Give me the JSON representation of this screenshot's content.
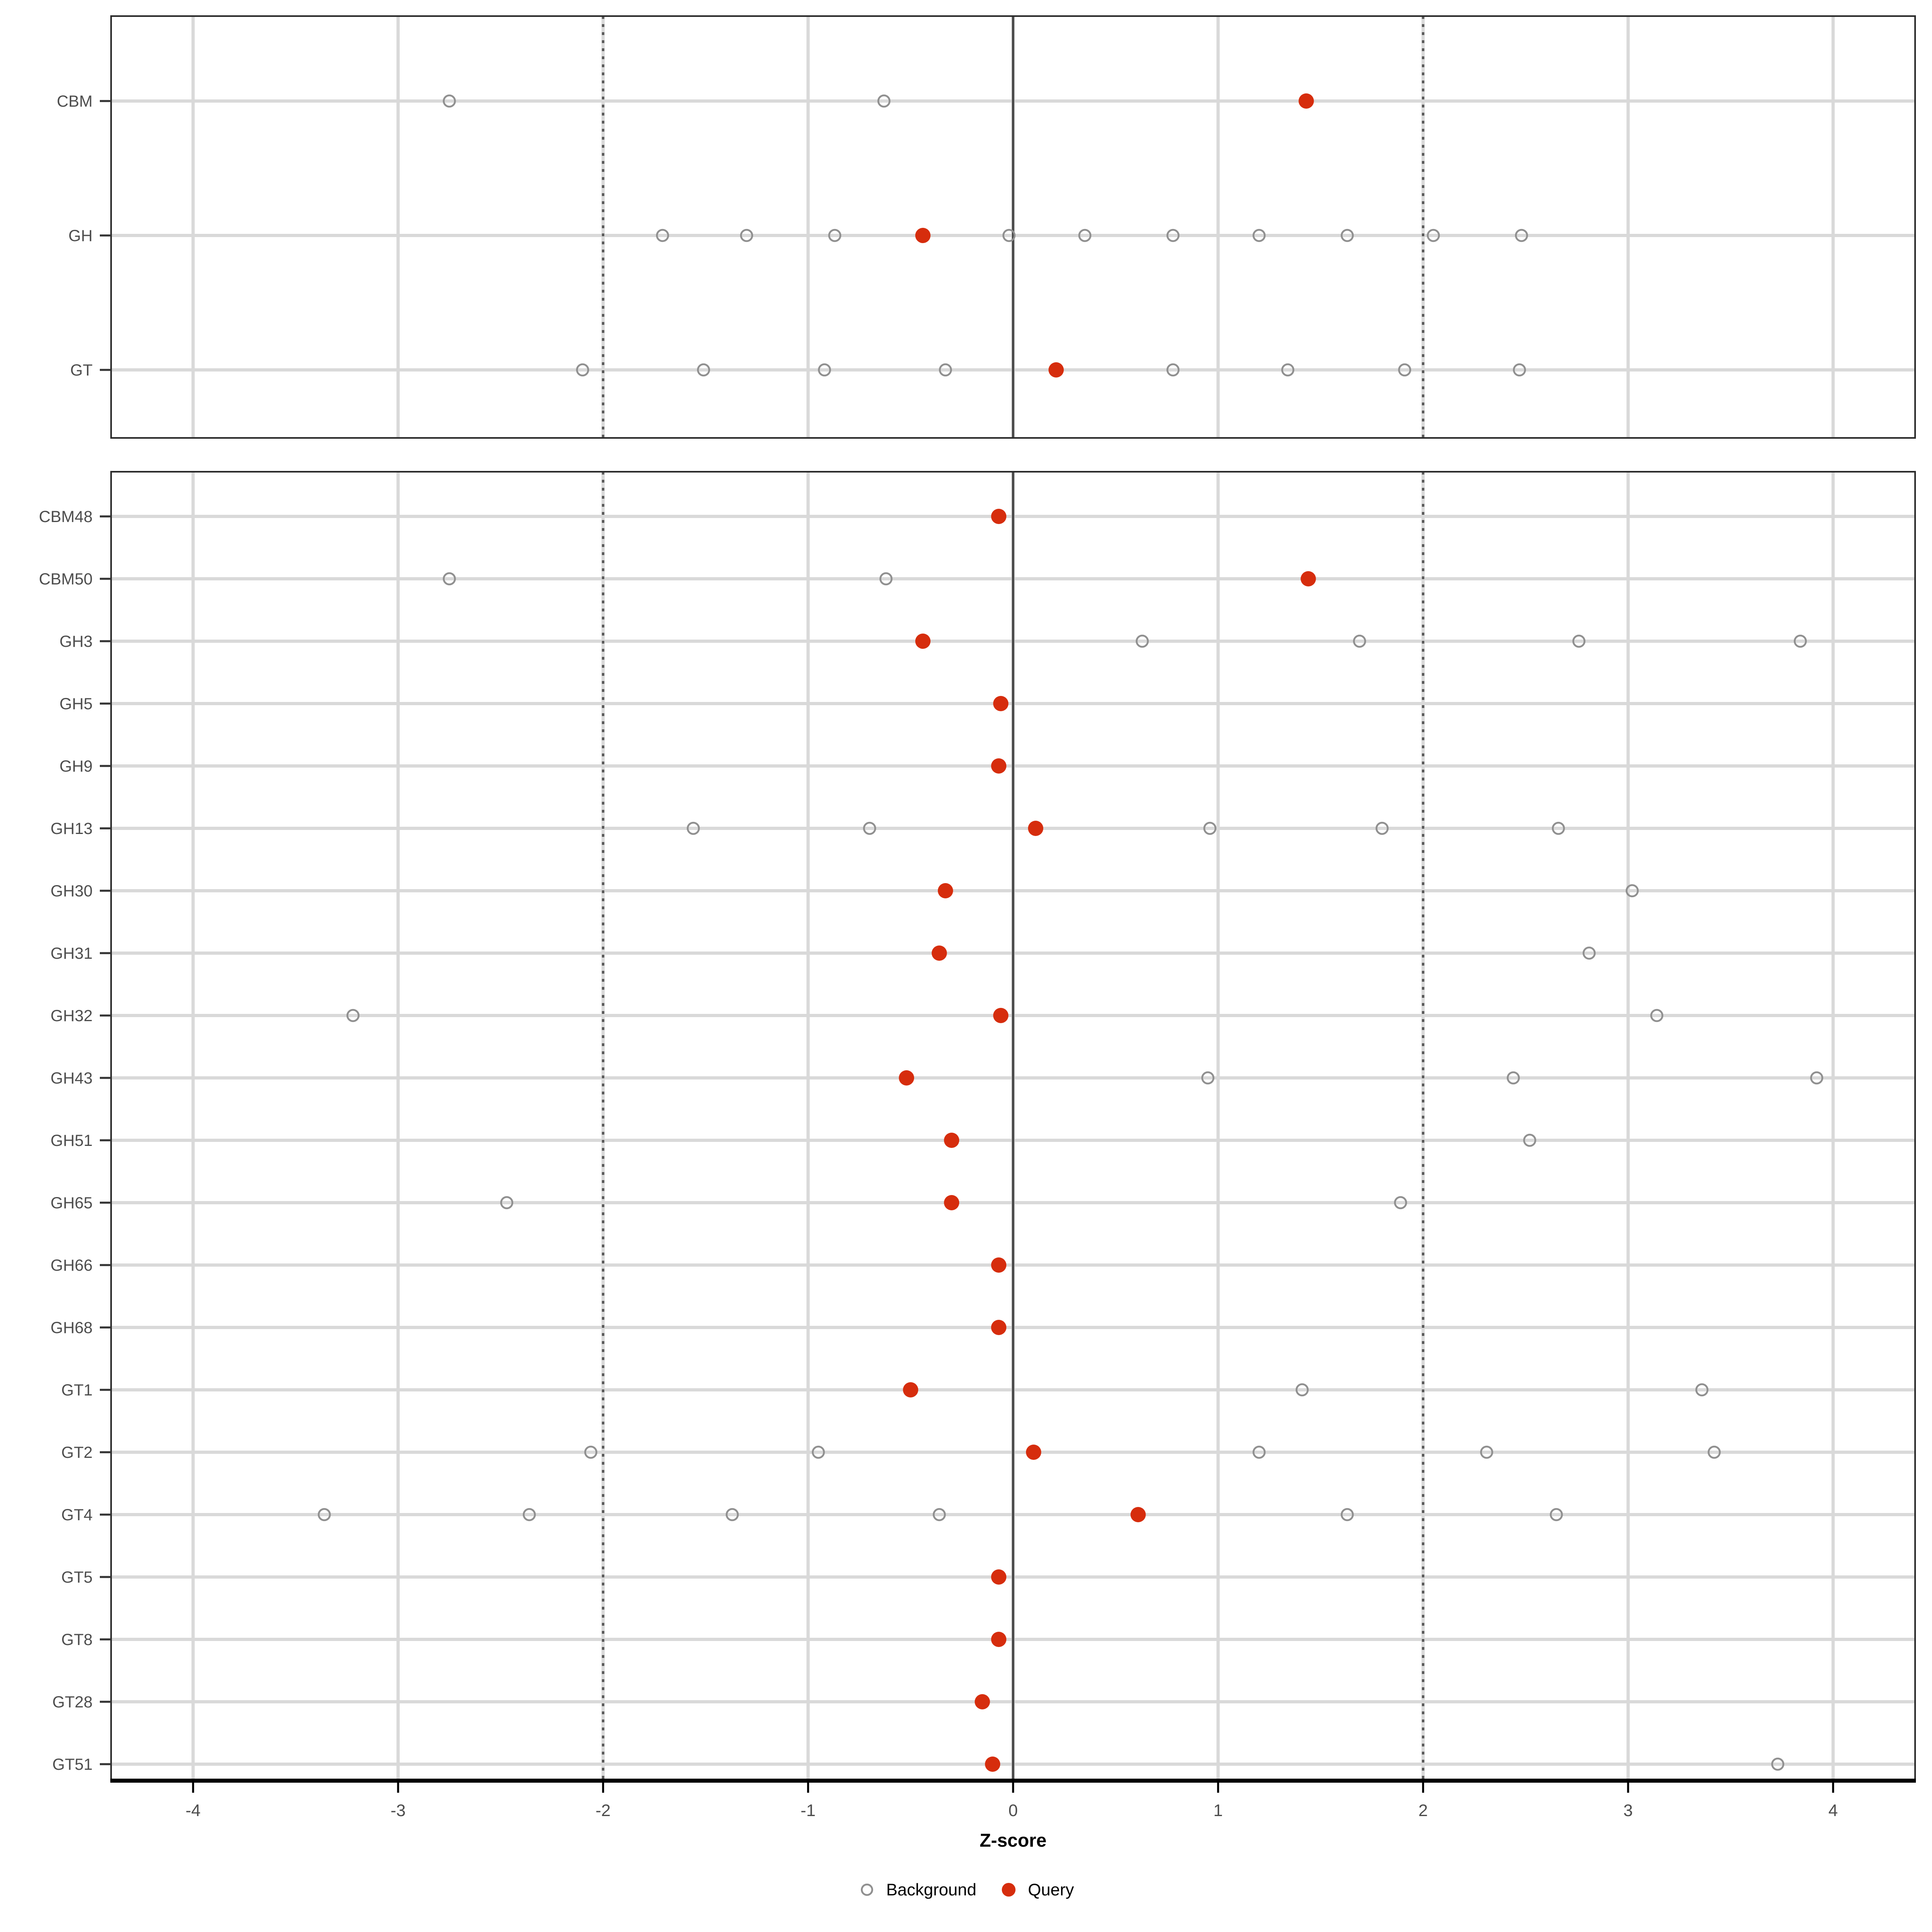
{
  "chart_data": {
    "type": "scatter",
    "title": "",
    "xlabel": "Z-score",
    "ylabel": "",
    "xlim": [
      -4.4,
      4.4
    ],
    "x_ticks": [
      -4,
      -3,
      -2,
      -1,
      0,
      1,
      2,
      3,
      4
    ],
    "grid": "on",
    "legend_position": "bottom",
    "reference_lines": {
      "solid": [
        0
      ],
      "dotted": [
        -2,
        2
      ]
    },
    "series_names": [
      "Background",
      "Query"
    ],
    "panels": [
      {
        "name": "summary-panel",
        "rows": [
          {
            "label": "CBM",
            "background": [
              -2.75,
              -0.63
            ],
            "query": [
              1.43
            ]
          },
          {
            "label": "GH",
            "background": [
              -1.71,
              -1.3,
              -0.87,
              -0.02,
              0.35,
              0.78,
              1.2,
              1.63,
              2.05,
              2.48
            ],
            "query": [
              -0.44
            ]
          },
          {
            "label": "GT",
            "background": [
              -2.1,
              -1.51,
              -0.92,
              -0.33,
              0.78,
              1.34,
              1.91,
              2.47
            ],
            "query": [
              0.21
            ]
          }
        ]
      },
      {
        "name": "family-panel",
        "rows": [
          {
            "label": "CBM48",
            "background": [],
            "query": [
              -0.07
            ]
          },
          {
            "label": "CBM50",
            "background": [
              -2.75,
              -0.62
            ],
            "query": [
              1.44
            ]
          },
          {
            "label": "GH3",
            "background": [
              0.63,
              1.69,
              2.76,
              3.84
            ],
            "query": [
              -0.44
            ]
          },
          {
            "label": "GH5",
            "background": [],
            "query": [
              -0.06
            ]
          },
          {
            "label": "GH9",
            "background": [],
            "query": [
              -0.07
            ]
          },
          {
            "label": "GH13",
            "background": [
              -1.56,
              -0.7,
              0.96,
              1.8,
              2.66
            ],
            "query": [
              0.11
            ]
          },
          {
            "label": "GH30",
            "background": [
              3.02
            ],
            "query": [
              -0.33
            ]
          },
          {
            "label": "GH31",
            "background": [
              2.81
            ],
            "query": [
              -0.36
            ]
          },
          {
            "label": "GH32",
            "background": [
              -3.22,
              3.14
            ],
            "query": [
              -0.06
            ]
          },
          {
            "label": "GH43",
            "background": [
              0.95,
              2.44,
              3.92
            ],
            "query": [
              -0.52
            ]
          },
          {
            "label": "GH51",
            "background": [
              2.52
            ],
            "query": [
              -0.3
            ]
          },
          {
            "label": "GH65",
            "background": [
              -2.47,
              1.89
            ],
            "query": [
              -0.3
            ]
          },
          {
            "label": "GH66",
            "background": [],
            "query": [
              -0.07
            ]
          },
          {
            "label": "GH68",
            "background": [],
            "query": [
              -0.07
            ]
          },
          {
            "label": "GT1",
            "background": [
              1.41,
              3.36
            ],
            "query": [
              -0.5
            ]
          },
          {
            "label": "GT2",
            "background": [
              -2.06,
              -0.95,
              1.2,
              2.31,
              3.42
            ],
            "query": [
              0.1
            ]
          },
          {
            "label": "GT4",
            "background": [
              -3.36,
              -2.36,
              -1.37,
              -0.36,
              1.63,
              2.65
            ],
            "query": [
              0.61
            ]
          },
          {
            "label": "GT5",
            "background": [],
            "query": [
              -0.07
            ]
          },
          {
            "label": "GT8",
            "background": [],
            "query": [
              -0.07
            ]
          },
          {
            "label": "GT28",
            "background": [],
            "query": [
              -0.15
            ]
          },
          {
            "label": "GT51",
            "background": [
              3.73
            ],
            "query": [
              -0.1
            ]
          }
        ]
      }
    ],
    "legend": [
      {
        "label": "Background",
        "marker": "open-circle"
      },
      {
        "label": "Query",
        "marker": "filled-circle"
      }
    ],
    "colors": {
      "background_point": "#909090",
      "query_point": "#d62d0d",
      "gridline": "#d9d9d9",
      "zero_line": "#4d4d4d",
      "dotted_line": "#595959",
      "axis_text": "#4d4d4d",
      "panel_border": "#2b2b2b",
      "axis_line": "#000000"
    }
  }
}
